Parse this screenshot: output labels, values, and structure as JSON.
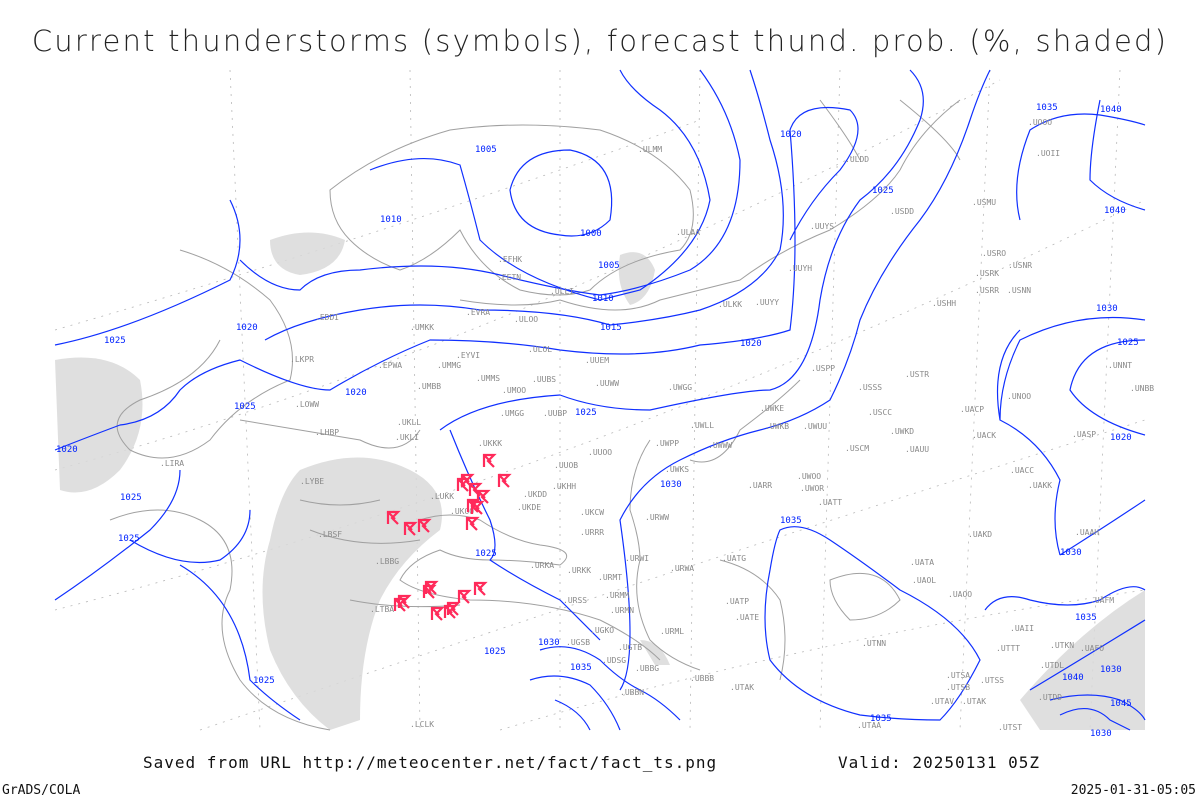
{
  "title": "Current thunderstorms (symbols), forecast thund. prob. (%, shaded)",
  "footer": {
    "saved_from": "Saved from URL http://meteocenter.net/fact/fact_ts.png",
    "valid": "Valid: 20250131 05Z",
    "software": "GrADS/COLA",
    "timestamp": "2025-01-31-05:05"
  },
  "colors": {
    "isobars": "#1030ff",
    "coastlines": "#a0a0a0",
    "station_labels": "#8a8a8a",
    "thunderstorm_symbols": "#ff2a5a",
    "probability_shading": "#d8d8d8"
  },
  "legend": {
    "symbol_icon": "thunderstorm-symbol-icon",
    "contours": "sea-level pressure isobars (hPa)"
  },
  "isobar_labels": [
    "1005",
    "1010",
    "1000",
    "1005",
    "1010",
    "1015",
    "1020",
    "1020",
    "1025",
    "1025",
    "1020",
    "1025",
    "1020",
    "1025",
    "1030",
    "1035",
    "1040",
    "1040",
    "1030",
    "1025",
    "1020",
    "1030",
    "1035",
    "1035",
    "1030",
    "1025",
    "1030",
    "1035",
    "1025",
    "1030",
    "1035",
    "1040",
    "1045",
    "1025",
    "1025",
    "1020",
    "1025"
  ],
  "stations": [
    "EDDI",
    "LKPR",
    "EPWA",
    "UMMG",
    "UMBB",
    "LOWW",
    "LHBP",
    "UKLL",
    "UKLI",
    "LIRA",
    "LYBE",
    "LUKK",
    "UKOO",
    "LBSF",
    "LBBG",
    "LTBA",
    "LCLK",
    "UMKK",
    "EVRA",
    "ULOO",
    "EFHK",
    "EETN",
    "ULLI",
    "ULAA",
    "ULMM",
    "ULOL",
    "EYVI",
    "UMMS",
    "UMOO",
    "UUBS",
    "UUEM",
    "UUWW",
    "UWGG",
    "UMGG",
    "UUBP",
    "UKKK",
    "UUOB",
    "UKHH",
    "UKDD",
    "UKDE",
    "UKCW",
    "URRR",
    "URKA",
    "URKK",
    "URSS",
    "URMT",
    "URMM",
    "URMN",
    "UGKO",
    "UGSB",
    "UGTB",
    "UDSG",
    "UBBG",
    "UBBN",
    "UBBB",
    "UWPP",
    "UUOO",
    "UWWW",
    "UWKE",
    "UWKB",
    "UWUU",
    "UWLL",
    "UWKS",
    "URWW",
    "URWI",
    "URWA",
    "UARR",
    "UWOO",
    "UWOR",
    "UATT",
    "UATG",
    "UATP",
    "UATE",
    "URML",
    "UTAK",
    "UTAA",
    "UTNN",
    "UATA",
    "UAOL",
    "UAOO",
    "UAKD",
    "UAKK",
    "UACC",
    "UACK",
    "UASP",
    "UAUU",
    "USCM",
    "UAAH",
    "UAFM",
    "UAII",
    "UAFO",
    "UTKN",
    "UTTT",
    "UTDL",
    "UTSA",
    "UTSB",
    "UTSS",
    "UTAV",
    "UTAK",
    "UTDD",
    "UTST",
    "ULDD",
    "UUYS",
    "UUYH",
    "ULKK",
    "UUYY",
    "USDD",
    "USMU",
    "USRO",
    "USRK",
    "USNR",
    "USRR",
    "USNN",
    "USHH",
    "USPP",
    "USSS",
    "USTR",
    "USCC",
    "UACP",
    "UNOO",
    "UNNT",
    "UNBB",
    "UOOO",
    "UOII",
    "UWKD"
  ]
}
